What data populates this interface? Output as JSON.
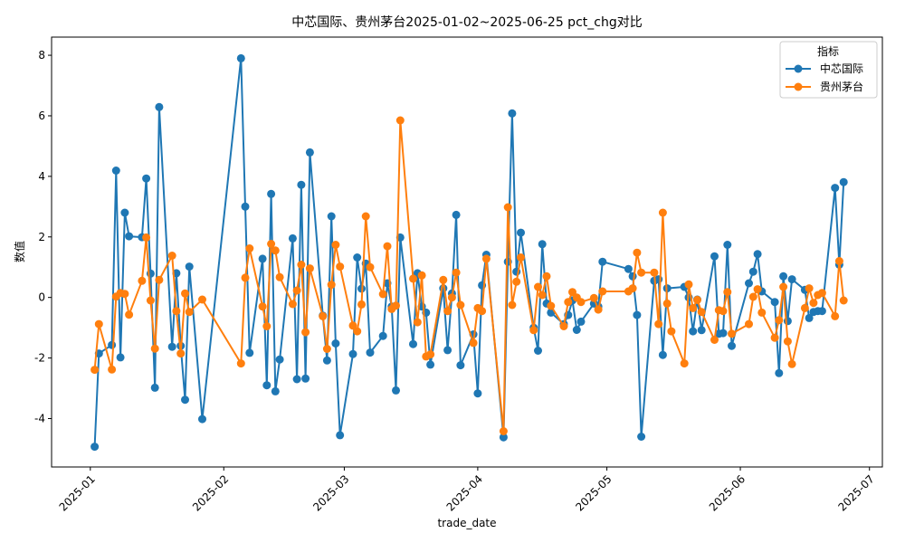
{
  "chart_data": {
    "type": "line",
    "title": "中芯国际、贵州茅台2025-01-02~2025-06-25 pct_chg对比",
    "xlabel": "trade_date",
    "ylabel": "数值",
    "ylim": [
      -5.6,
      8.6
    ],
    "xlim": [
      "2024-12-23",
      "2025-07-04"
    ],
    "y_ticks": [
      -4,
      -2,
      0,
      2,
      4,
      6,
      8
    ],
    "x_ticks": [
      {
        "date": "2025-01-01",
        "label": "2025-01"
      },
      {
        "date": "2025-02-01",
        "label": "2025-02"
      },
      {
        "date": "2025-03-01",
        "label": "2025-03"
      },
      {
        "date": "2025-04-01",
        "label": "2025-04"
      },
      {
        "date": "2025-05-01",
        "label": "2025-05"
      },
      {
        "date": "2025-06-01",
        "label": "2025-06"
      },
      {
        "date": "2025-07-01",
        "label": "2025-07"
      }
    ],
    "legend": {
      "title": "指标",
      "position": "top-right"
    },
    "grid": false,
    "series": [
      {
        "name": "中芯国际",
        "color": "#1f77b4",
        "points": [
          [
            "2025-01-02",
            -4.93
          ],
          [
            "2025-01-03",
            -1.85
          ],
          [
            "2025-01-06",
            -1.57
          ],
          [
            "2025-01-07",
            4.19
          ],
          [
            "2025-01-08",
            -1.98
          ],
          [
            "2025-01-09",
            2.8
          ],
          [
            "2025-01-10",
            2.02
          ],
          [
            "2025-01-13",
            1.99
          ],
          [
            "2025-01-14",
            3.93
          ],
          [
            "2025-01-15",
            0.79
          ],
          [
            "2025-01-16",
            -2.98
          ],
          [
            "2025-01-17",
            6.29
          ],
          [
            "2025-01-20",
            -1.63
          ],
          [
            "2025-01-21",
            0.8
          ],
          [
            "2025-01-22",
            -1.6
          ],
          [
            "2025-01-23",
            -3.38
          ],
          [
            "2025-01-24",
            1.02
          ],
          [
            "2025-01-27",
            -4.02
          ],
          [
            "2025-02-05",
            7.9
          ],
          [
            "2025-02-06",
            3.0
          ],
          [
            "2025-02-07",
            -1.83
          ],
          [
            "2025-02-10",
            1.28
          ],
          [
            "2025-02-11",
            -2.9
          ],
          [
            "2025-02-12",
            3.42
          ],
          [
            "2025-02-13",
            -3.1
          ],
          [
            "2025-02-14",
            -2.05
          ],
          [
            "2025-02-17",
            1.95
          ],
          [
            "2025-02-18",
            -2.7
          ],
          [
            "2025-02-19",
            3.72
          ],
          [
            "2025-02-20",
            -2.68
          ],
          [
            "2025-02-21",
            4.79
          ],
          [
            "2025-02-24",
            -0.6
          ],
          [
            "2025-02-25",
            -2.08
          ],
          [
            "2025-02-26",
            2.68
          ],
          [
            "2025-02-27",
            -1.52
          ],
          [
            "2025-02-28",
            -4.55
          ],
          [
            "2025-03-03",
            -1.87
          ],
          [
            "2025-03-04",
            1.32
          ],
          [
            "2025-03-05",
            0.29
          ],
          [
            "2025-03-06",
            1.12
          ],
          [
            "2025-03-07",
            -1.82
          ],
          [
            "2025-03-10",
            -1.27
          ],
          [
            "2025-03-11",
            0.47
          ],
          [
            "2025-03-12",
            -0.3
          ],
          [
            "2025-03-13",
            -3.07
          ],
          [
            "2025-03-14",
            1.98
          ],
          [
            "2025-03-17",
            -1.54
          ],
          [
            "2025-03-18",
            0.8
          ],
          [
            "2025-03-19",
            -0.3
          ],
          [
            "2025-03-20",
            -0.5
          ],
          [
            "2025-03-21",
            -2.22
          ],
          [
            "2025-03-24",
            0.3
          ],
          [
            "2025-03-25",
            -1.74
          ],
          [
            "2025-03-26",
            0.13
          ],
          [
            "2025-03-27",
            2.73
          ],
          [
            "2025-03-28",
            -2.24
          ],
          [
            "2025-03-31",
            -1.22
          ],
          [
            "2025-04-01",
            -3.17
          ],
          [
            "2025-04-02",
            0.4
          ],
          [
            "2025-04-03",
            1.41
          ],
          [
            "2025-04-07",
            -4.62
          ],
          [
            "2025-04-08",
            1.18
          ],
          [
            "2025-04-09",
            6.08
          ],
          [
            "2025-04-10",
            0.85
          ],
          [
            "2025-04-11",
            2.14
          ],
          [
            "2025-04-14",
            -1.0
          ],
          [
            "2025-04-15",
            -1.76
          ],
          [
            "2025-04-16",
            1.76
          ],
          [
            "2025-04-17",
            -0.2
          ],
          [
            "2025-04-18",
            -0.5
          ],
          [
            "2025-04-21",
            -0.88
          ],
          [
            "2025-04-22",
            -0.58
          ],
          [
            "2025-04-23",
            -0.1
          ],
          [
            "2025-04-24",
            -1.07
          ],
          [
            "2025-04-25",
            -0.8
          ],
          [
            "2025-04-28",
            -0.2
          ],
          [
            "2025-04-29",
            -0.3
          ],
          [
            "2025-04-30",
            1.18
          ],
          [
            "2025-05-06",
            0.94
          ],
          [
            "2025-05-07",
            0.7
          ],
          [
            "2025-05-08",
            -0.58
          ],
          [
            "2025-05-09",
            -4.6
          ],
          [
            "2025-05-12",
            0.55
          ],
          [
            "2025-05-13",
            0.6
          ],
          [
            "2025-05-14",
            -1.9
          ],
          [
            "2025-05-15",
            0.3
          ],
          [
            "2025-05-19",
            0.35
          ],
          [
            "2025-05-20",
            0.0
          ],
          [
            "2025-05-21",
            -1.12
          ],
          [
            "2025-05-22",
            -0.07
          ],
          [
            "2025-05-23",
            -1.08
          ],
          [
            "2025-05-26",
            1.36
          ],
          [
            "2025-05-27",
            -1.2
          ],
          [
            "2025-05-28",
            -1.18
          ],
          [
            "2025-05-29",
            1.74
          ],
          [
            "2025-05-30",
            -1.6
          ],
          [
            "2025-06-03",
            0.47
          ],
          [
            "2025-06-04",
            0.85
          ],
          [
            "2025-06-05",
            1.43
          ],
          [
            "2025-06-06",
            0.2
          ],
          [
            "2025-06-09",
            -0.15
          ],
          [
            "2025-06-10",
            -2.5
          ],
          [
            "2025-06-11",
            0.7
          ],
          [
            "2025-06-12",
            -0.78
          ],
          [
            "2025-06-13",
            0.6
          ],
          [
            "2025-06-16",
            0.25
          ],
          [
            "2025-06-17",
            -0.68
          ],
          [
            "2025-06-18",
            -0.48
          ],
          [
            "2025-06-19",
            -0.45
          ],
          [
            "2025-06-20",
            -0.45
          ],
          [
            "2025-06-23",
            3.62
          ],
          [
            "2025-06-24",
            1.08
          ],
          [
            "2025-06-25",
            3.81
          ]
        ]
      },
      {
        "name": "贵州茅台",
        "color": "#ff7f0e",
        "points": [
          [
            "2025-01-02",
            -2.39
          ],
          [
            "2025-01-03",
            -0.88
          ],
          [
            "2025-01-06",
            -2.38
          ],
          [
            "2025-01-07",
            0.03
          ],
          [
            "2025-01-08",
            0.15
          ],
          [
            "2025-01-09",
            0.12
          ],
          [
            "2025-01-10",
            -0.57
          ],
          [
            "2025-01-13",
            0.55
          ],
          [
            "2025-01-14",
            1.98
          ],
          [
            "2025-01-15",
            -0.1
          ],
          [
            "2025-01-16",
            -1.69
          ],
          [
            "2025-01-17",
            0.58
          ],
          [
            "2025-01-20",
            1.38
          ],
          [
            "2025-01-21",
            -0.45
          ],
          [
            "2025-01-22",
            -1.85
          ],
          [
            "2025-01-23",
            0.13
          ],
          [
            "2025-01-24",
            -0.48
          ],
          [
            "2025-01-27",
            -0.07
          ],
          [
            "2025-02-05",
            -2.18
          ],
          [
            "2025-02-06",
            0.65
          ],
          [
            "2025-02-07",
            1.62
          ],
          [
            "2025-02-10",
            -0.3
          ],
          [
            "2025-02-11",
            -0.95
          ],
          [
            "2025-02-12",
            1.77
          ],
          [
            "2025-02-13",
            1.55
          ],
          [
            "2025-02-14",
            0.67
          ],
          [
            "2025-02-17",
            -0.22
          ],
          [
            "2025-02-18",
            0.23
          ],
          [
            "2025-02-19",
            1.08
          ],
          [
            "2025-02-20",
            -1.15
          ],
          [
            "2025-02-21",
            0.96
          ],
          [
            "2025-02-24",
            -0.62
          ],
          [
            "2025-02-25",
            -1.7
          ],
          [
            "2025-02-26",
            0.42
          ],
          [
            "2025-02-27",
            1.74
          ],
          [
            "2025-02-28",
            1.02
          ],
          [
            "2025-03-03",
            -0.93
          ],
          [
            "2025-03-04",
            -1.12
          ],
          [
            "2025-03-05",
            -0.23
          ],
          [
            "2025-03-06",
            2.68
          ],
          [
            "2025-03-07",
            1.0
          ],
          [
            "2025-03-10",
            0.11
          ],
          [
            "2025-03-11",
            1.69
          ],
          [
            "2025-03-12",
            -0.38
          ],
          [
            "2025-03-13",
            -0.27
          ],
          [
            "2025-03-14",
            5.85
          ],
          [
            "2025-03-17",
            0.62
          ],
          [
            "2025-03-18",
            -0.82
          ],
          [
            "2025-03-19",
            0.73
          ],
          [
            "2025-03-20",
            -1.95
          ],
          [
            "2025-03-21",
            -1.88
          ],
          [
            "2025-03-24",
            0.58
          ],
          [
            "2025-03-25",
            -0.45
          ],
          [
            "2025-03-26",
            0.0
          ],
          [
            "2025-03-27",
            0.82
          ],
          [
            "2025-03-28",
            -0.25
          ],
          [
            "2025-03-31",
            -1.5
          ],
          [
            "2025-04-01",
            -0.35
          ],
          [
            "2025-04-02",
            -0.45
          ],
          [
            "2025-04-03",
            1.28
          ],
          [
            "2025-04-07",
            -4.42
          ],
          [
            "2025-04-08",
            2.98
          ],
          [
            "2025-04-09",
            -0.25
          ],
          [
            "2025-04-10",
            0.52
          ],
          [
            "2025-04-11",
            1.32
          ],
          [
            "2025-04-14",
            -1.08
          ],
          [
            "2025-04-15",
            0.35
          ],
          [
            "2025-04-16",
            0.08
          ],
          [
            "2025-04-17",
            0.7
          ],
          [
            "2025-04-18",
            -0.28
          ],
          [
            "2025-04-21",
            -0.95
          ],
          [
            "2025-04-22",
            -0.15
          ],
          [
            "2025-04-23",
            0.18
          ],
          [
            "2025-04-24",
            0.0
          ],
          [
            "2025-04-25",
            -0.15
          ],
          [
            "2025-04-28",
            -0.02
          ],
          [
            "2025-04-29",
            -0.4
          ],
          [
            "2025-04-30",
            0.2
          ],
          [
            "2025-05-06",
            0.2
          ],
          [
            "2025-05-07",
            0.3
          ],
          [
            "2025-05-08",
            1.48
          ],
          [
            "2025-05-09",
            0.82
          ],
          [
            "2025-05-12",
            0.82
          ],
          [
            "2025-05-13",
            -0.88
          ],
          [
            "2025-05-14",
            2.8
          ],
          [
            "2025-05-15",
            -0.2
          ],
          [
            "2025-05-16",
            -1.12
          ],
          [
            "2025-05-19",
            -2.18
          ],
          [
            "2025-05-20",
            0.43
          ],
          [
            "2025-05-21",
            -0.35
          ],
          [
            "2025-05-22",
            -0.08
          ],
          [
            "2025-05-23",
            -0.48
          ],
          [
            "2025-05-26",
            -1.4
          ],
          [
            "2025-05-27",
            -0.42
          ],
          [
            "2025-05-28",
            -0.45
          ],
          [
            "2025-05-29",
            0.18
          ],
          [
            "2025-05-30",
            -1.2
          ],
          [
            "2025-06-03",
            -0.88
          ],
          [
            "2025-06-04",
            0.02
          ],
          [
            "2025-06-05",
            0.27
          ],
          [
            "2025-06-06",
            -0.5
          ],
          [
            "2025-06-09",
            -1.33
          ],
          [
            "2025-06-10",
            -0.75
          ],
          [
            "2025-06-11",
            0.35
          ],
          [
            "2025-06-12",
            -1.45
          ],
          [
            "2025-06-13",
            -2.2
          ],
          [
            "2025-06-16",
            -0.35
          ],
          [
            "2025-06-17",
            0.3
          ],
          [
            "2025-06-18",
            -0.18
          ],
          [
            "2025-06-19",
            0.08
          ],
          [
            "2025-06-20",
            0.15
          ],
          [
            "2025-06-23",
            -0.62
          ],
          [
            "2025-06-24",
            1.2
          ],
          [
            "2025-06-25",
            -0.1
          ]
        ]
      }
    ]
  }
}
